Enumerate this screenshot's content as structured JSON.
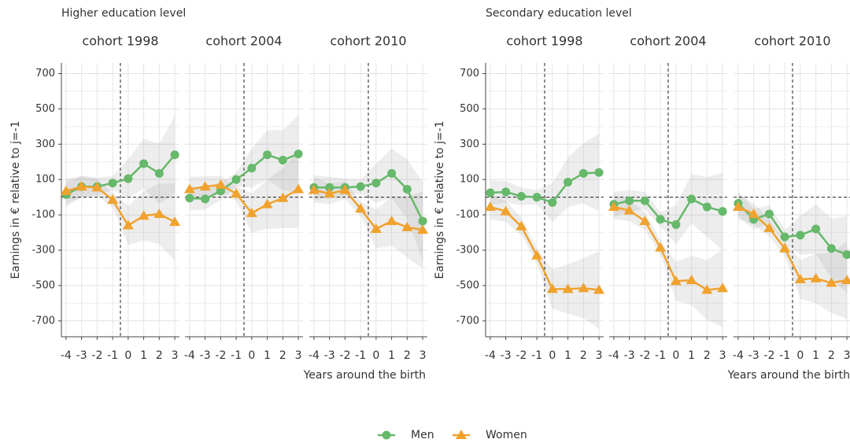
{
  "chart_data": [
    {
      "type": "line",
      "suptitle": "Higher education level",
      "title": "cohort 1998",
      "ylabel": "Earnings in € relative to j=-1",
      "x": [
        -4,
        -3,
        -2,
        -1,
        0,
        1,
        2,
        3
      ],
      "xlim": [
        -4.3,
        3.3
      ],
      "xticks": [
        -4,
        -3,
        -2,
        -1,
        0,
        1,
        2,
        3
      ],
      "ylim": [
        -790,
        760
      ],
      "yticks": [
        -700,
        -500,
        -300,
        -100,
        100,
        300,
        500,
        700
      ],
      "minor_yticks": [
        -600,
        -400,
        -200,
        0,
        200,
        400,
        600
      ],
      "vline": -0.5,
      "hline": 0,
      "grid": true,
      "series": [
        {
          "name": "Men",
          "color": "#66b86a",
          "marker": "circle",
          "values": [
            15,
            60,
            60,
            80,
            105,
            190,
            135,
            240
          ],
          "lower": [
            -55,
            0,
            10,
            40,
            -5,
            50,
            -35,
            20
          ],
          "upper": [
            85,
            120,
            110,
            120,
            215,
            330,
            305,
            460
          ]
        },
        {
          "name": "Women",
          "color": "#f0a22e",
          "marker": "triangle",
          "values": [
            35,
            60,
            55,
            -15,
            -160,
            -105,
            -95,
            -140
          ],
          "lower": [
            -35,
            0,
            5,
            -55,
            -270,
            -245,
            -265,
            -360
          ],
          "upper": [
            105,
            120,
            105,
            25,
            -50,
            35,
            75,
            80
          ]
        }
      ]
    },
    {
      "type": "line",
      "title": "cohort 2004",
      "x": [
        -4,
        -3,
        -2,
        -1,
        0,
        1,
        2,
        3
      ],
      "xlim": [
        -4.3,
        3.3
      ],
      "xticks": [
        -4,
        -3,
        -2,
        -1,
        0,
        1,
        2,
        3
      ],
      "ylim": [
        -790,
        760
      ],
      "yticks": [
        -700,
        -500,
        -300,
        -100,
        100,
        300,
        500,
        700
      ],
      "minor_yticks": [
        -600,
        -400,
        -200,
        0,
        200,
        400,
        600
      ],
      "vline": -0.5,
      "hline": 0,
      "grid": true,
      "series": [
        {
          "name": "Men",
          "color": "#66b86a",
          "marker": "circle",
          "values": [
            -5,
            -10,
            35,
            100,
            165,
            240,
            210,
            245
          ],
          "lower": [
            -75,
            -70,
            -15,
            60,
            55,
            100,
            40,
            25
          ],
          "upper": [
            65,
            50,
            85,
            140,
            275,
            380,
            380,
            465
          ]
        },
        {
          "name": "Women",
          "color": "#f0a22e",
          "marker": "triangle",
          "values": [
            45,
            60,
            70,
            20,
            -90,
            -40,
            -5,
            45
          ],
          "lower": [
            -25,
            0,
            20,
            -20,
            -200,
            -180,
            -175,
            -175
          ],
          "upper": [
            115,
            120,
            120,
            60,
            20,
            100,
            165,
            265
          ]
        }
      ]
    },
    {
      "type": "line",
      "title": "cohort 2010",
      "xlabel": "Years around the birth",
      "x": [
        -4,
        -3,
        -2,
        -1,
        0,
        1,
        2,
        3
      ],
      "xlim": [
        -4.3,
        3.3
      ],
      "xticks": [
        -4,
        -3,
        -2,
        -1,
        0,
        1,
        2,
        3
      ],
      "ylim": [
        -790,
        760
      ],
      "yticks": [
        -700,
        -500,
        -300,
        -100,
        100,
        300,
        500,
        700
      ],
      "minor_yticks": [
        -600,
        -400,
        -200,
        0,
        200,
        400,
        600
      ],
      "vline": -0.5,
      "hline": 0,
      "grid": true,
      "series": [
        {
          "name": "Men",
          "color": "#66b86a",
          "marker": "circle",
          "values": [
            55,
            55,
            55,
            60,
            80,
            135,
            45,
            -135
          ],
          "lower": [
            -15,
            -5,
            5,
            20,
            -30,
            -5,
            -125,
            -355
          ],
          "upper": [
            125,
            115,
            105,
            100,
            190,
            275,
            215,
            85
          ]
        },
        {
          "name": "Women",
          "color": "#f0a22e",
          "marker": "triangle",
          "values": [
            40,
            20,
            40,
            -65,
            -180,
            -135,
            -170,
            -185
          ],
          "lower": [
            -30,
            -40,
            -10,
            -105,
            -290,
            -275,
            -340,
            -405
          ],
          "upper": [
            110,
            80,
            90,
            -25,
            -70,
            5,
            0,
            35
          ]
        }
      ]
    },
    {
      "type": "line",
      "suptitle": "Secondary education level",
      "title": "cohort 1998",
      "ylabel": "Earnings in € relative to j=-1",
      "x": [
        -4,
        -3,
        -2,
        -1,
        0,
        1,
        2,
        3
      ],
      "xlim": [
        -4.3,
        3.3
      ],
      "xticks": [
        -4,
        -3,
        -2,
        -1,
        0,
        1,
        2,
        3
      ],
      "ylim": [
        -790,
        760
      ],
      "yticks": [
        -700,
        -500,
        -300,
        -100,
        100,
        300,
        500,
        700
      ],
      "minor_yticks": [
        -600,
        -400,
        -200,
        0,
        200,
        400,
        600
      ],
      "vline": -0.5,
      "hline": 0,
      "grid": true,
      "series": [
        {
          "name": "Men",
          "color": "#66b86a",
          "marker": "circle",
          "values": [
            25,
            30,
            5,
            0,
            -30,
            85,
            135,
            140
          ],
          "lower": [
            -45,
            -30,
            -45,
            -40,
            -140,
            -55,
            -35,
            -80
          ],
          "upper": [
            95,
            90,
            55,
            40,
            80,
            225,
            305,
            360
          ]
        },
        {
          "name": "Women",
          "color": "#f0a22e",
          "marker": "triangle",
          "values": [
            -55,
            -80,
            -165,
            -330,
            -520,
            -520,
            -515,
            -525
          ],
          "lower": [
            -125,
            -140,
            -215,
            -370,
            -630,
            -660,
            -685,
            -745
          ],
          "upper": [
            15,
            -20,
            -115,
            -290,
            -410,
            -380,
            -345,
            -305
          ]
        }
      ]
    },
    {
      "type": "line",
      "title": "cohort 2004",
      "x": [
        -4,
        -3,
        -2,
        -1,
        0,
        1,
        2,
        3
      ],
      "xlim": [
        -4.3,
        3.3
      ],
      "xticks": [
        -4,
        -3,
        -2,
        -1,
        0,
        1,
        2,
        3
      ],
      "ylim": [
        -790,
        760
      ],
      "yticks": [
        -700,
        -500,
        -300,
        -100,
        100,
        300,
        500,
        700
      ],
      "minor_yticks": [
        -600,
        -400,
        -200,
        0,
        200,
        400,
        600
      ],
      "vline": -0.5,
      "hline": 0,
      "grid": true,
      "series": [
        {
          "name": "Men",
          "color": "#66b86a",
          "marker": "circle",
          "values": [
            -40,
            -20,
            -20,
            -125,
            -155,
            -10,
            -55,
            -80
          ],
          "lower": [
            -110,
            -80,
            -70,
            -165,
            -265,
            -150,
            -225,
            -300
          ],
          "upper": [
            30,
            40,
            30,
            -85,
            -45,
            130,
            115,
            140
          ]
        },
        {
          "name": "Women",
          "color": "#f0a22e",
          "marker": "triangle",
          "values": [
            -55,
            -75,
            -135,
            -285,
            -475,
            -470,
            -525,
            -515
          ],
          "lower": [
            -125,
            -135,
            -185,
            -325,
            -585,
            -610,
            -695,
            -735
          ],
          "upper": [
            15,
            -15,
            -85,
            -245,
            -365,
            -330,
            -355,
            -295
          ]
        }
      ]
    },
    {
      "type": "line",
      "title": "cohort 2010",
      "xlabel": "Years around the birth",
      "x": [
        -4,
        -3,
        -2,
        -1,
        0,
        1,
        2,
        3
      ],
      "xlim": [
        -4.3,
        3.3
      ],
      "xticks": [
        -4,
        -3,
        -2,
        -1,
        0,
        1,
        2,
        3
      ],
      "ylim": [
        -790,
        760
      ],
      "yticks": [
        -700,
        -500,
        -300,
        -100,
        100,
        300,
        500,
        700
      ],
      "minor_yticks": [
        -600,
        -400,
        -200,
        0,
        200,
        400,
        600
      ],
      "vline": -0.5,
      "hline": 0,
      "grid": true,
      "series": [
        {
          "name": "Men",
          "color": "#66b86a",
          "marker": "circle",
          "values": [
            -35,
            -125,
            -95,
            -225,
            -215,
            -180,
            -290,
            -325
          ],
          "lower": [
            -105,
            -185,
            -145,
            -265,
            -325,
            -320,
            -460,
            -545
          ],
          "upper": [
            35,
            -65,
            -45,
            -185,
            -105,
            -40,
            -120,
            -105
          ]
        },
        {
          "name": "Women",
          "color": "#f0a22e",
          "marker": "triangle",
          "values": [
            -55,
            -95,
            -175,
            -290,
            -465,
            -460,
            -485,
            -470
          ],
          "lower": [
            -125,
            -155,
            -225,
            -330,
            -575,
            -600,
            -655,
            -690
          ],
          "upper": [
            15,
            -35,
            -125,
            -250,
            -355,
            -320,
            -315,
            -250
          ]
        }
      ]
    }
  ]
}
